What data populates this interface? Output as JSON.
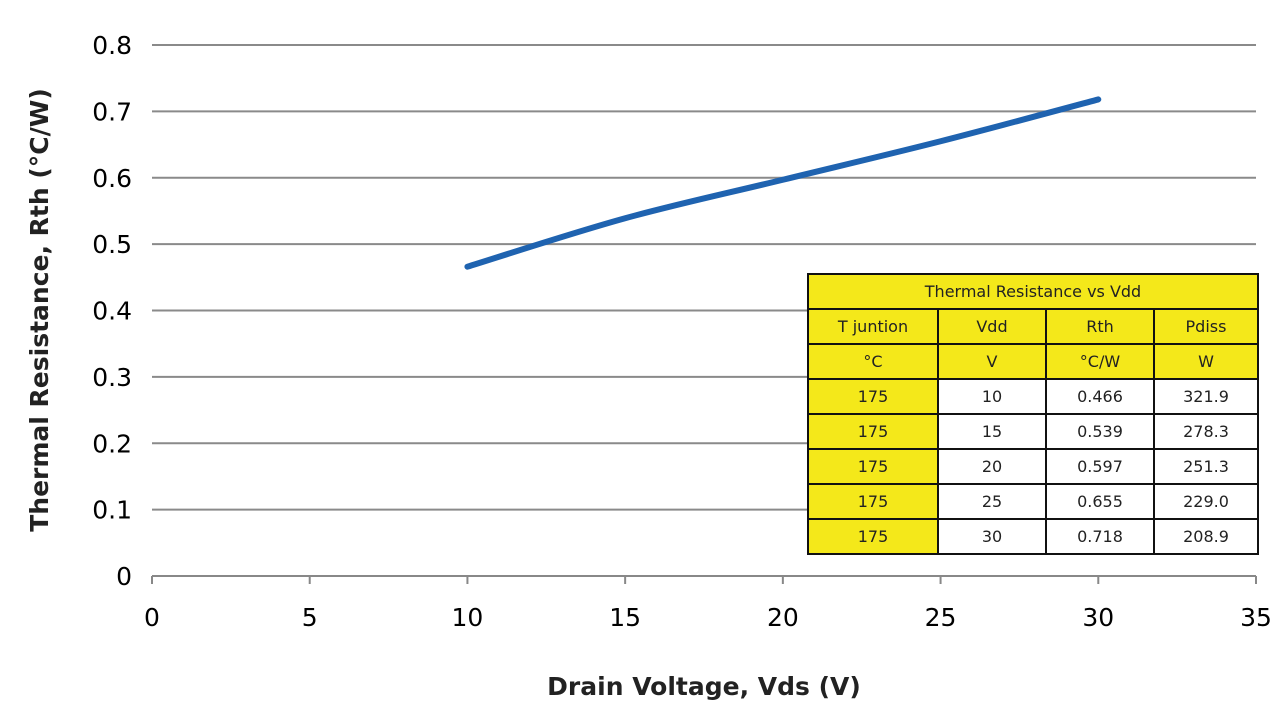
{
  "chart_data": {
    "type": "line",
    "title": "",
    "xlabel": "Drain Voltage, Vds (V)",
    "ylabel": "Thermal Resistance, Rth (°C/W)",
    "xlim": [
      0,
      35
    ],
    "ylim": [
      0,
      0.8
    ],
    "xticks": [
      "0",
      "5",
      "10",
      "15",
      "20",
      "25",
      "30",
      "35"
    ],
    "yticks": [
      "0",
      "0.1",
      "0.2",
      "0.3",
      "0.4",
      "0.5",
      "0.6",
      "0.7",
      "0.8"
    ],
    "grid": "horizontal",
    "series": [
      {
        "name": "Rth",
        "color": "#1f63b0",
        "x": [
          10,
          15,
          20,
          25,
          30
        ],
        "y": [
          0.466,
          0.539,
          0.597,
          0.655,
          0.718
        ]
      }
    ]
  },
  "table": {
    "title": "Thermal Resistance vs Vdd",
    "headers": [
      "T juntion",
      "Vdd",
      "Rth",
      "Pdiss"
    ],
    "units": [
      "°C",
      "V",
      "°C/W",
      "W"
    ],
    "rows": [
      [
        "175",
        "10",
        "0.466",
        "321.9"
      ],
      [
        "175",
        "15",
        "0.539",
        "278.3"
      ],
      [
        "175",
        "20",
        "0.597",
        "251.3"
      ],
      [
        "175",
        "25",
        "0.655",
        "229.0"
      ],
      [
        "175",
        "30",
        "0.718",
        "208.9"
      ]
    ],
    "header_color": "#f4e81a"
  }
}
